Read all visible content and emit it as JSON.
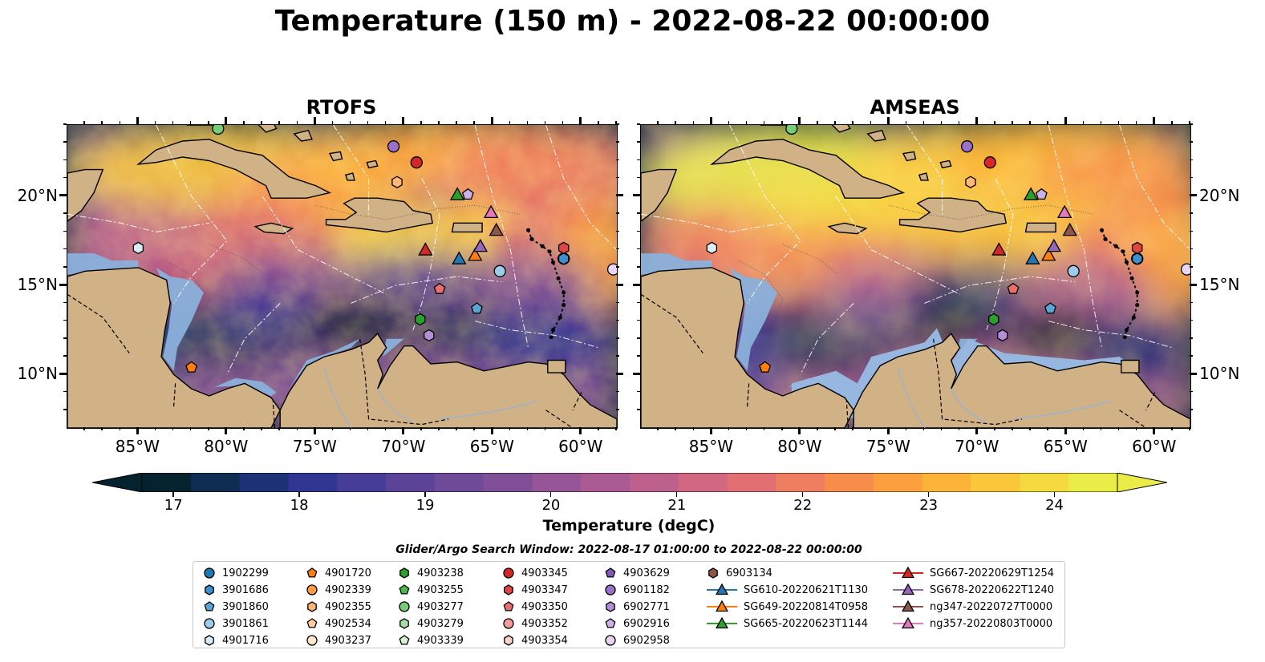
{
  "title": "Temperature (150 m) - 2022-08-22 00:00:00",
  "panels": [
    {
      "title": "RTOFS"
    },
    {
      "title": "AMSEAS"
    }
  ],
  "axes": {
    "x_ticks": [
      "85°W",
      "80°W",
      "75°W",
      "70°W",
      "65°W",
      "60°W"
    ],
    "y_ticks": [
      "20°N",
      "15°N",
      "10°N"
    ],
    "lon_range": [
      -89,
      -58
    ],
    "lat_range": [
      7,
      24
    ]
  },
  "colorbar": {
    "label": "Temperature (degC)",
    "ticks": [
      "17",
      "18",
      "19",
      "20",
      "21",
      "22",
      "23",
      "24"
    ],
    "range": [
      16.75,
      24.5
    ],
    "colormap": "thermal",
    "colors": [
      "#04232f",
      "#0f2c52",
      "#1d3176",
      "#2f3792",
      "#463d99",
      "#5b4498",
      "#6e4a98",
      "#814f97",
      "#955596",
      "#aa5b93",
      "#be608c",
      "#d26781",
      "#e26f72",
      "#ef7d5f",
      "#f78d4b",
      "#fba03d",
      "#fcb438",
      "#fac63a",
      "#f4d93f",
      "#eaec47"
    ]
  },
  "legend": {
    "title": "Glider/Argo Search Window: 2022-08-17 01:00:00 to 2022-08-22 00:00:00",
    "columns": [
      [
        {
          "label": "1902299",
          "marker": "circle",
          "color": "#1f77b4"
        },
        {
          "label": "3901686",
          "marker": "hexagon",
          "color": "#3f8fcc"
        },
        {
          "label": "3901860",
          "marker": "pentagon",
          "color": "#5aa5d6"
        },
        {
          "label": "3901861",
          "marker": "circle",
          "color": "#9dcce8"
        },
        {
          "label": "4901716",
          "marker": "hexagon",
          "color": "#daedf7"
        }
      ],
      [
        {
          "label": "4901720",
          "marker": "pentagon",
          "color": "#ff7f0e"
        },
        {
          "label": "4902339",
          "marker": "circle",
          "color": "#ff9a45"
        },
        {
          "label": "4902355",
          "marker": "hexagon",
          "color": "#ffb678"
        },
        {
          "label": "4902534",
          "marker": "pentagon",
          "color": "#ffcf9f"
        },
        {
          "label": "4903237",
          "marker": "circle",
          "color": "#ffe6cc"
        }
      ],
      [
        {
          "label": "4903238",
          "marker": "hexagon",
          "color": "#2ca02c"
        },
        {
          "label": "4903255",
          "marker": "pentagon",
          "color": "#4cb84c"
        },
        {
          "label": "4903277",
          "marker": "circle",
          "color": "#77cc77"
        },
        {
          "label": "4903279",
          "marker": "hexagon",
          "color": "#a6dfa6"
        },
        {
          "label": "4903339",
          "marker": "pentagon",
          "color": "#d7f1d3"
        }
      ],
      [
        {
          "label": "4903345",
          "marker": "circle",
          "color": "#d62728"
        },
        {
          "label": "4903347",
          "marker": "hexagon",
          "color": "#e04546"
        },
        {
          "label": "4903350",
          "marker": "pentagon",
          "color": "#ea6e6e"
        },
        {
          "label": "4903352",
          "marker": "circle",
          "color": "#f39c9a"
        },
        {
          "label": "4903354",
          "marker": "hexagon",
          "color": "#fbd1cf"
        }
      ],
      [
        {
          "label": "4903629",
          "marker": "pentagon",
          "color": "#8458b8"
        },
        {
          "label": "6901182",
          "marker": "circle",
          "color": "#9b70c9"
        },
        {
          "label": "6902771",
          "marker": "hexagon",
          "color": "#b38fd8"
        },
        {
          "label": "6902916",
          "marker": "pentagon",
          "color": "#cdb2e6"
        },
        {
          "label": "6902958",
          "marker": "circle",
          "color": "#e6d6f3"
        }
      ],
      [
        {
          "label": "6903134",
          "marker": "hexagon",
          "color": "#8c564b"
        },
        {
          "label": "SG610-20220621T1130",
          "marker": "triangle",
          "color": "#1f77b4",
          "line": true
        },
        {
          "label": "SG649-20220814T0958",
          "marker": "triangle",
          "color": "#ff7f0e",
          "line": true
        },
        {
          "label": "SG665-20220623T1144",
          "marker": "triangle",
          "color": "#2ca02c",
          "line": true
        }
      ],
      [
        {
          "label": "SG667-20220629T1254",
          "marker": "triangle",
          "color": "#d62728",
          "line": true
        },
        {
          "label": "SG678-20220622T1240",
          "marker": "triangle",
          "color": "#9467bd",
          "line": true
        },
        {
          "label": "ng347-20220727T0000",
          "marker": "triangle",
          "color": "#8c564b",
          "line": true
        },
        {
          "label": "ng357-20220803T0000",
          "marker": "triangle",
          "color": "#e377c2",
          "line": true
        }
      ]
    ]
  },
  "platforms": [
    {
      "id": "1902299",
      "lon": -61.0,
      "lat": 16.5
    },
    {
      "id": "3901686",
      "lon": -61.0,
      "lat": 16.5
    },
    {
      "id": "3901860",
      "lon": -65.9,
      "lat": 13.7
    },
    {
      "id": "3901861",
      "lon": -64.6,
      "lat": 15.8
    },
    {
      "id": "4901716",
      "lon": -85.0,
      "lat": 17.1
    },
    {
      "id": "4901720",
      "lon": -82.0,
      "lat": 10.4
    },
    {
      "id": "4902355",
      "lon": -70.4,
      "lat": 20.8
    },
    {
      "id": "4903238",
      "lon": -69.1,
      "lat": 13.1
    },
    {
      "id": "4903277",
      "lon": -80.5,
      "lat": 23.8
    },
    {
      "id": "4903345",
      "lon": -69.3,
      "lat": 21.9
    },
    {
      "id": "4903347",
      "lon": -61.0,
      "lat": 17.1
    },
    {
      "id": "4903350",
      "lon": -68.0,
      "lat": 14.8
    },
    {
      "id": "6901182",
      "lon": -70.6,
      "lat": 22.8
    },
    {
      "id": "6902771",
      "lon": -68.6,
      "lat": 12.2
    },
    {
      "id": "6902916",
      "lon": -66.4,
      "lat": 20.1
    },
    {
      "id": "6902958",
      "lon": -58.2,
      "lat": 15.9
    },
    {
      "id": "SG610-20220621T1130",
      "lon": -66.9,
      "lat": 16.5
    },
    {
      "id": "SG649-20220814T0958",
      "lon": -66.0,
      "lat": 16.7
    },
    {
      "id": "SG665-20220623T1144",
      "lon": -67.0,
      "lat": 20.1
    },
    {
      "id": "SG667-20220629T1254",
      "lon": -68.8,
      "lat": 17.0
    },
    {
      "id": "SG678-20220622T1240",
      "lon": -65.7,
      "lat": 17.2
    },
    {
      "id": "ng347-20220727T0000",
      "lon": -64.8,
      "lat": 18.1
    },
    {
      "id": "ng357-20220803T0000",
      "lon": -65.1,
      "lat": 19.1
    }
  ]
}
